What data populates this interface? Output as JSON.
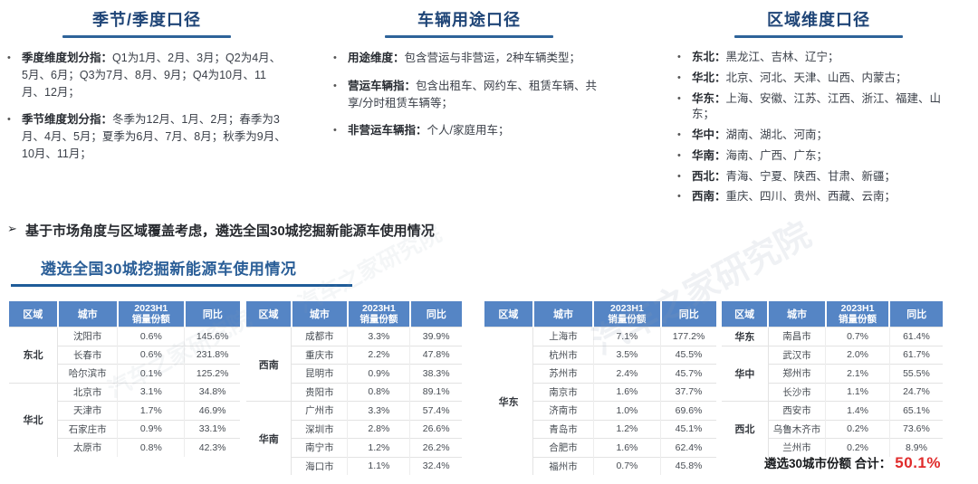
{
  "sections": [
    {
      "title": "季节/季度口径",
      "bullets": [
        {
          "label": "季度维度划分指：",
          "text": "Q1为1月、2月、3月；Q2为4月、5月、6月；Q3为7月、8月、9月；Q4为10月、11月、12月；"
        },
        {
          "label": "季节维度划分指：",
          "text": "冬季为12月、1月、2月；春季为3月、4月、5月；夏季为6月、7月、8月；秋季为9月、10月、11月；"
        }
      ]
    },
    {
      "title": "车辆用途口径",
      "bullets": [
        {
          "label": "用途维度：",
          "text": "包含营运与非营运，2种车辆类型；"
        },
        {
          "label": "营运车辆指：",
          "text": "包含出租车、网约车、租赁车辆、共享/分时租赁车辆等；"
        },
        {
          "label": "非营运车辆指：",
          "text": "个人/家庭用车；"
        }
      ]
    },
    {
      "title": "区域维度口径",
      "bullets": [
        {
          "label": "东北：",
          "text": "黑龙江、吉林、辽宁；"
        },
        {
          "label": "华北：",
          "text": "北京、河北、天津、山西、内蒙古；"
        },
        {
          "label": "华东：",
          "text": "上海、安徽、江苏、江西、浙江、福建、山东；"
        },
        {
          "label": "华中：",
          "text": "湖南、湖北、河南；"
        },
        {
          "label": "华南：",
          "text": "海南、广西、广东；"
        },
        {
          "label": "西北：",
          "text": "青海、宁夏、陕西、甘肃、新疆；"
        },
        {
          "label": "西南：",
          "text": "重庆、四川、贵州、西藏、云南；"
        }
      ]
    }
  ],
  "statement": {
    "marker": "➢",
    "text": "基于市场角度与区域覆盖考虑，遴选全国30城挖掘新能源车使用情况"
  },
  "list_title": "遴选全国30城挖掘新能源车使用情况",
  "table_headers": {
    "region": "区域",
    "city": "城市",
    "share_line1": "2023H1",
    "share_line2": "销量份额",
    "yoy": "同比"
  },
  "tables": [
    {
      "groups": [
        {
          "region": "东北",
          "rows": [
            {
              "city": "沈阳市",
              "share": "0.6%",
              "yoy": "145.6%"
            },
            {
              "city": "长春市",
              "share": "0.6%",
              "yoy": "231.8%"
            },
            {
              "city": "哈尔滨市",
              "share": "0.1%",
              "yoy": "125.2%"
            }
          ]
        },
        {
          "region": "华北",
          "rows": [
            {
              "city": "北京市",
              "share": "3.1%",
              "yoy": "34.8%"
            },
            {
              "city": "天津市",
              "share": "1.7%",
              "yoy": "46.9%"
            },
            {
              "city": "石家庄市",
              "share": "0.9%",
              "yoy": "33.1%"
            },
            {
              "city": "太原市",
              "share": "0.8%",
              "yoy": "42.3%"
            }
          ]
        }
      ]
    },
    {
      "groups": [
        {
          "region": "西南",
          "rows": [
            {
              "city": "成都市",
              "share": "3.3%",
              "yoy": "39.9%"
            },
            {
              "city": "重庆市",
              "share": "2.2%",
              "yoy": "47.8%"
            },
            {
              "city": "昆明市",
              "share": "0.9%",
              "yoy": "38.3%"
            },
            {
              "city": "贵阳市",
              "share": "0.8%",
              "yoy": "89.1%"
            }
          ]
        },
        {
          "region": "华南",
          "rows": [
            {
              "city": "广州市",
              "share": "3.3%",
              "yoy": "57.4%"
            },
            {
              "city": "深圳市",
              "share": "2.8%",
              "yoy": "26.6%"
            },
            {
              "city": "南宁市",
              "share": "1.2%",
              "yoy": "26.2%"
            },
            {
              "city": "海口市",
              "share": "1.1%",
              "yoy": "32.4%"
            }
          ]
        }
      ]
    },
    {
      "groups": [
        {
          "region": "华东",
          "rows": [
            {
              "city": "上海市",
              "share": "7.1%",
              "yoy": "177.2%"
            },
            {
              "city": "杭州市",
              "share": "3.5%",
              "yoy": "45.5%"
            },
            {
              "city": "苏州市",
              "share": "2.4%",
              "yoy": "45.7%"
            },
            {
              "city": "南京市",
              "share": "1.6%",
              "yoy": "37.7%"
            },
            {
              "city": "济南市",
              "share": "1.0%",
              "yoy": "69.6%"
            },
            {
              "city": "青岛市",
              "share": "1.2%",
              "yoy": "45.1%"
            },
            {
              "city": "合肥市",
              "share": "1.6%",
              "yoy": "62.4%"
            },
            {
              "city": "福州市",
              "share": "0.7%",
              "yoy": "45.8%"
            }
          ]
        }
      ]
    },
    {
      "groups": [
        {
          "region": "华东",
          "rows": [
            {
              "city": "南昌市",
              "share": "0.7%",
              "yoy": "61.4%"
            }
          ]
        },
        {
          "region": "华中",
          "rows": [
            {
              "city": "武汉市",
              "share": "2.0%",
              "yoy": "61.7%"
            },
            {
              "city": "郑州市",
              "share": "2.1%",
              "yoy": "55.5%"
            },
            {
              "city": "长沙市",
              "share": "1.1%",
              "yoy": "24.7%"
            }
          ]
        },
        {
          "region": "西北",
          "rows": [
            {
              "city": "西安市",
              "share": "1.4%",
              "yoy": "65.1%"
            },
            {
              "city": "乌鲁木齐市",
              "share": "0.2%",
              "yoy": "73.6%"
            },
            {
              "city": "兰州市",
              "share": "0.2%",
              "yoy": "8.9%"
            }
          ]
        }
      ]
    }
  ],
  "footer": {
    "label": "遴选30城市份额 合计：",
    "value": "50.1%"
  },
  "watermark": "汽车之家研究院",
  "colors": {
    "title_navy": "#1F4577",
    "underline_blue": "#2E6399",
    "list_title_blue": "#1F5C99",
    "table_header_blue": "#5585C5",
    "total_red": "#E02B2B"
  }
}
